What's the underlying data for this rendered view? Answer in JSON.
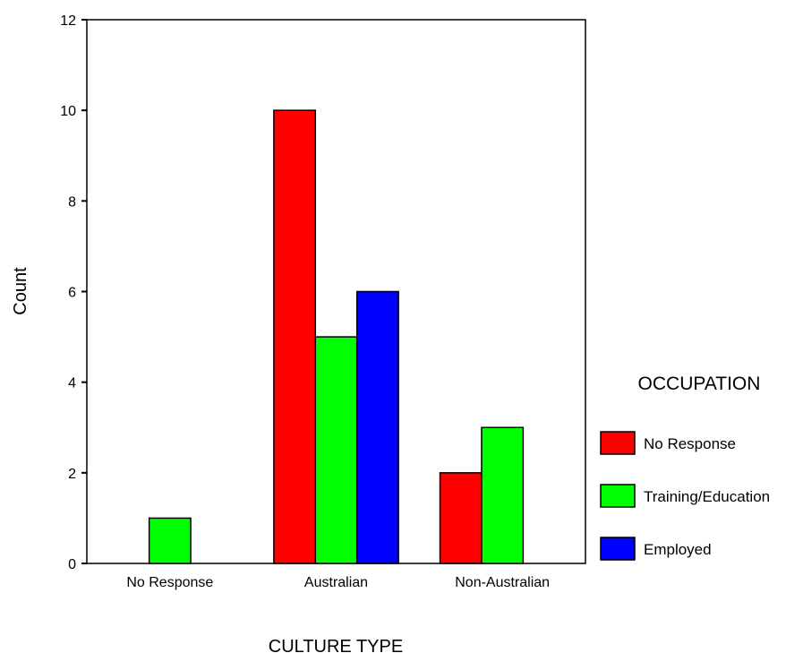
{
  "chart_data": {
    "type": "bar",
    "title": "",
    "xlabel": "CULTURE TYPE",
    "ylabel": "Count",
    "categories": [
      "No Response",
      "Australian",
      "Non-Australian"
    ],
    "series": [
      {
        "name": "No Response",
        "color": "#ff0000",
        "values": [
          0,
          10,
          2
        ]
      },
      {
        "name": "Training/Education",
        "color": "#00ff00",
        "values": [
          1,
          5,
          3
        ]
      },
      {
        "name": "Employed",
        "color": "#0000ff",
        "values": [
          0,
          6,
          0
        ]
      }
    ],
    "ylim": [
      0,
      12
    ],
    "yticks": [
      "0",
      "2",
      "4",
      "6",
      "8",
      "10",
      "12"
    ],
    "grid": false,
    "legend": {
      "title": "OCCUPATION",
      "placement": "right"
    }
  }
}
